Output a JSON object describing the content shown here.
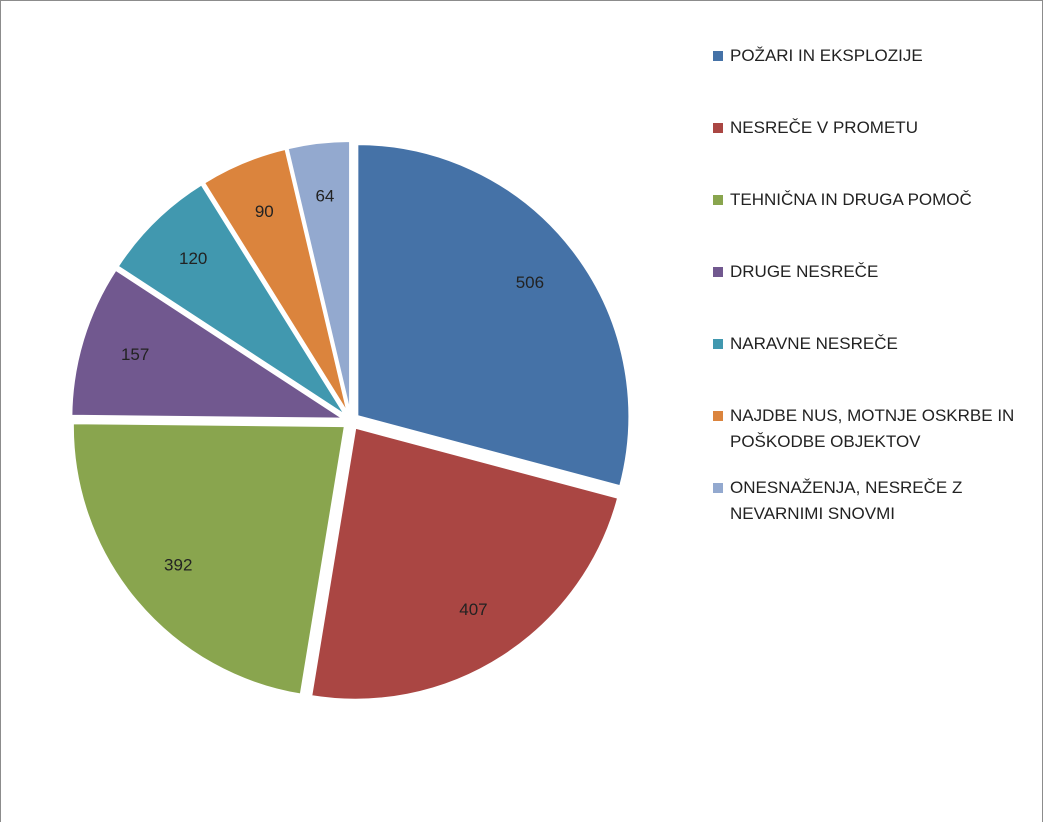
{
  "chart_data": {
    "type": "pie",
    "categories": [
      "POŽARI IN EKSPLOZIJE",
      "NESREČE V PROMETU",
      "TEHNIČNA IN DRUGA POMOČ",
      "DRUGE NESREČE",
      "NARAVNE NESREČE",
      "NAJDBE NUS, MOTNJE OSKRBE IN POŠKODBE OBJEKTOV",
      "ONESNAŽENJA, NESREČE Z NEVARNIMI SNOVMI"
    ],
    "values": [
      506,
      407,
      392,
      157,
      120,
      90,
      64
    ],
    "colors": [
      "#4572a7",
      "#aa4643",
      "#89a54e",
      "#71588f",
      "#4198af",
      "#db843d",
      "#93a9cf"
    ],
    "legend": "right"
  }
}
